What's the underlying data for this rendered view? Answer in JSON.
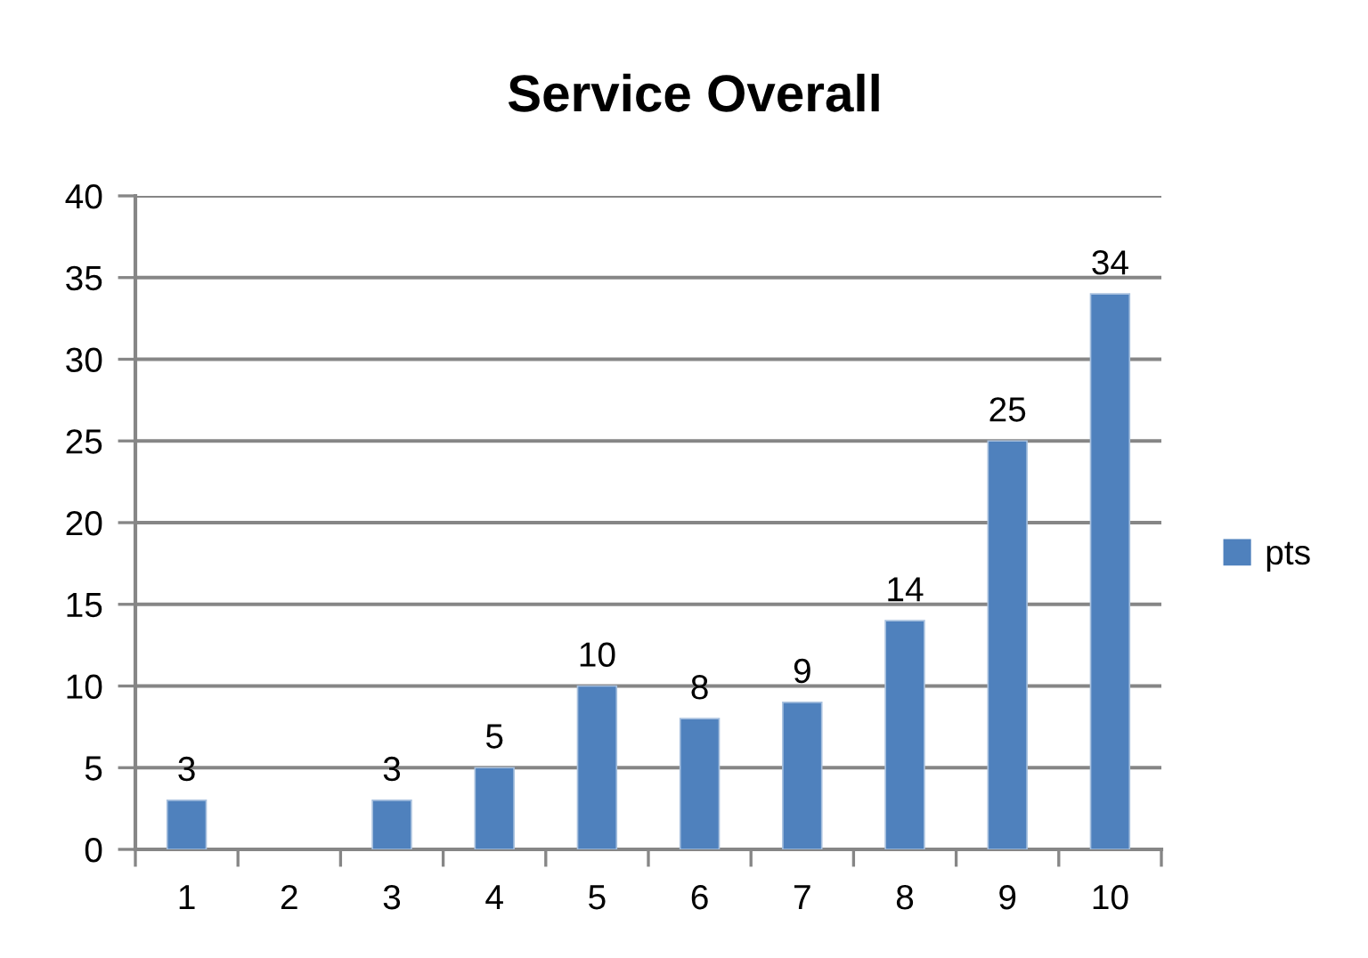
{
  "chart_data": {
    "type": "bar",
    "title": "Service Overall",
    "categories": [
      "1",
      "2",
      "3",
      "4",
      "5",
      "6",
      "7",
      "8",
      "9",
      "10"
    ],
    "series": [
      {
        "name": "pts",
        "color": "#4f81bd",
        "values": [
          3,
          null,
          3,
          5,
          10,
          8,
          9,
          14,
          25,
          34
        ]
      }
    ],
    "ylim": [
      0,
      40
    ],
    "yticks": [
      0,
      5,
      10,
      15,
      20,
      25,
      30,
      35,
      40
    ],
    "grid": "y",
    "legend": "right",
    "data_labels": true
  }
}
